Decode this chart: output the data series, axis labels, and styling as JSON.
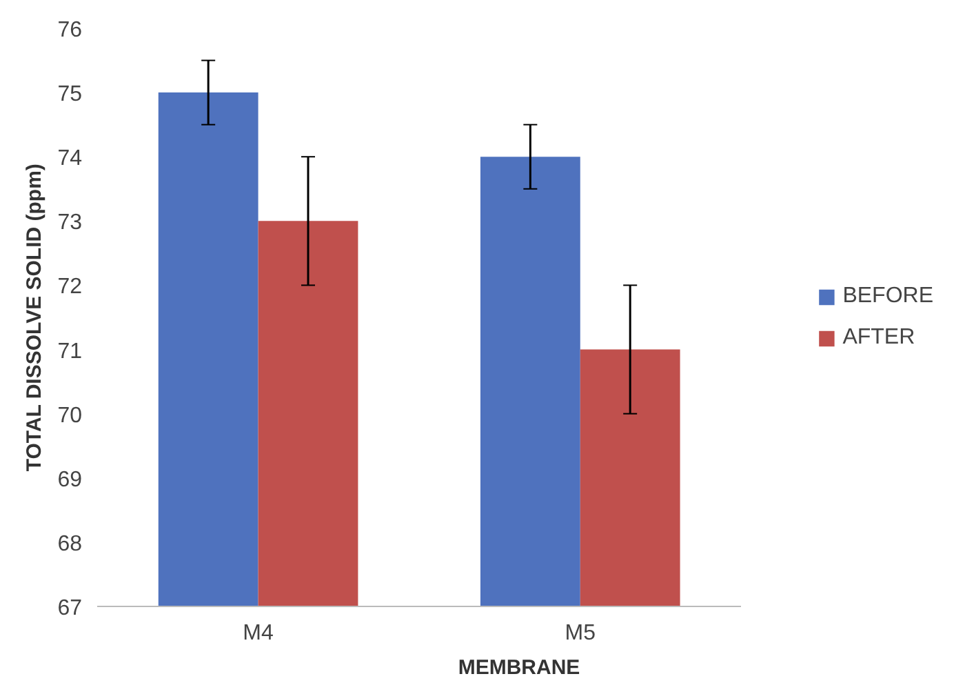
{
  "chart_data": {
    "type": "bar",
    "xlabel": "MEMBRANE",
    "ylabel": "TOTAL DISSOLVE SOLID (ppm)",
    "categories": [
      "M4",
      "M5"
    ],
    "series": [
      {
        "name": "BEFORE",
        "color": "#4f72be",
        "values": [
          75,
          74
        ],
        "errors": [
          0.5,
          0.5
        ]
      },
      {
        "name": "AFTER",
        "color": "#c0504d",
        "values": [
          73,
          71
        ],
        "errors": [
          1,
          1
        ]
      }
    ],
    "ylim": [
      67,
      76
    ],
    "yticks": [
      67,
      68,
      69,
      70,
      71,
      72,
      73,
      74,
      75,
      76
    ],
    "grid": false,
    "legend": "right"
  }
}
